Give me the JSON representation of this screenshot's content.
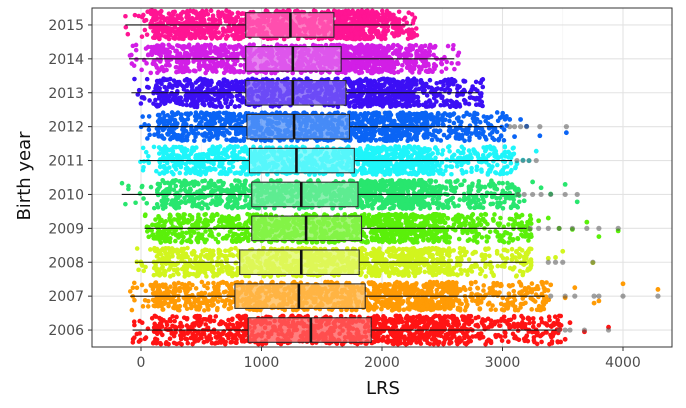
{
  "chart_data": {
    "type": "boxplot-jitter",
    "title": "",
    "xlabel": "LRS",
    "ylabel": "Birth year",
    "xlim": [
      -200,
      4400
    ],
    "x_ticks": [
      0,
      1000,
      2000,
      3000,
      4000
    ],
    "grid": true,
    "legend": "none",
    "categories": [
      "2006",
      "2007",
      "2008",
      "2009",
      "2010",
      "2011",
      "2012",
      "2013",
      "2014",
      "2015"
    ],
    "series": [
      {
        "name": "2015",
        "color": "#ff1493",
        "whisker_low": -130,
        "q1": 870,
        "median": 1240,
        "q3": 1600,
        "whisker_high": 2250,
        "dense_min": 80,
        "dense_max": 2150,
        "outliers": []
      },
      {
        "name": "2014",
        "color": "#d21ee6",
        "whisker_low": -100,
        "q1": 870,
        "median": 1260,
        "q3": 1660,
        "whisker_high": 2600,
        "dense_min": 80,
        "dense_max": 2400,
        "outliers": []
      },
      {
        "name": "2013",
        "color": "#3c0ff5",
        "whisker_low": -80,
        "q1": 870,
        "median": 1260,
        "q3": 1700,
        "whisker_high": 2800,
        "dense_min": 120,
        "dense_max": 2700,
        "outliers": []
      },
      {
        "name": "2012",
        "color": "#0a64f5",
        "whisker_low": -10,
        "q1": 880,
        "median": 1270,
        "q3": 1730,
        "whisker_high": 3000,
        "dense_min": 140,
        "dense_max": 2900,
        "outliers": [
          3060,
          3100,
          3150,
          3200,
          3310,
          3530
        ]
      },
      {
        "name": "2011",
        "color": "#1ef5fa",
        "whisker_low": -10,
        "q1": 900,
        "median": 1290,
        "q3": 1770,
        "whisker_high": 3080,
        "dense_min": 150,
        "dense_max": 3000,
        "outliers": [
          3120,
          3170,
          3220,
          3280
        ]
      },
      {
        "name": "2010",
        "color": "#28e66e",
        "whisker_low": -160,
        "q1": 920,
        "median": 1330,
        "q3": 1800,
        "whisker_high": 3100,
        "dense_min": 130,
        "dense_max": 3050,
        "outliers": [
          3130,
          3180,
          3250,
          3320,
          3400,
          3520,
          3620
        ]
      },
      {
        "name": "2009",
        "color": "#5af00a",
        "whisker_low": 30,
        "q1": 920,
        "median": 1370,
        "q3": 1830,
        "whisker_high": 3200,
        "dense_min": 120,
        "dense_max": 3150,
        "outliers": [
          3230,
          3300,
          3380,
          3470,
          3580,
          3700,
          3800,
          3960
        ]
      },
      {
        "name": "2008",
        "color": "#d2f51e",
        "whisker_low": -50,
        "q1": 820,
        "median": 1330,
        "q3": 1810,
        "whisker_high": 3200,
        "dense_min": 110,
        "dense_max": 3150,
        "outliers": [
          3380,
          3440,
          3500,
          3750
        ]
      },
      {
        "name": "2007",
        "color": "#ff9b05",
        "whisker_low": -90,
        "q1": 780,
        "median": 1310,
        "q3": 1860,
        "whisker_high": 3350,
        "dense_min": 80,
        "dense_max": 3300,
        "outliers": [
          3400,
          3520,
          3600,
          3760,
          3800,
          4000,
          4290
        ]
      },
      {
        "name": "2006",
        "color": "#ff1414",
        "whisker_low": -70,
        "q1": 890,
        "median": 1410,
        "q3": 1910,
        "whisker_high": 3450,
        "dense_min": 100,
        "dense_max": 3400,
        "outliers": [
          3470,
          3520,
          3560,
          3680,
          3880
        ]
      }
    ]
  }
}
